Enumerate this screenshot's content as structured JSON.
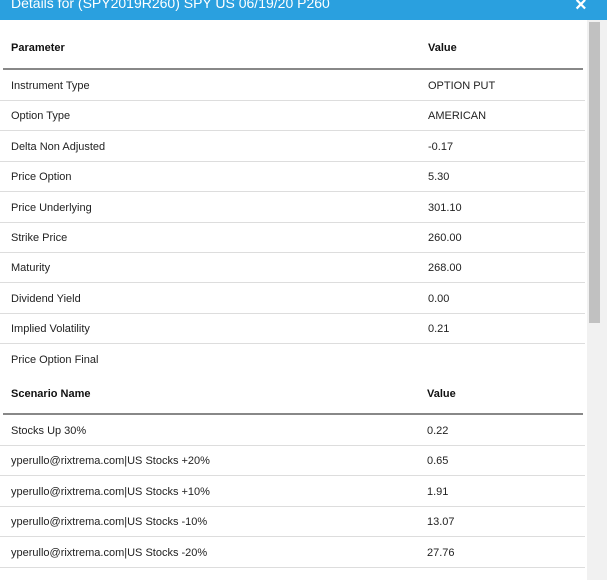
{
  "header": {
    "title": "Details for (SPY2019R260) SPY US 06/19/20 P260",
    "close": "×"
  },
  "parameters": {
    "columns": [
      "Parameter",
      "Value"
    ],
    "rows": [
      [
        "Instrument Type",
        "OPTION PUT"
      ],
      [
        "Option Type",
        "AMERICAN"
      ],
      [
        "Delta Non Adjusted",
        "-0.17"
      ],
      [
        "Price Option",
        "5.30"
      ],
      [
        "Price Underlying",
        "301.10"
      ],
      [
        "Strike Price",
        "260.00"
      ],
      [
        "Maturity",
        "268.00"
      ],
      [
        "Dividend Yield",
        "0.00"
      ],
      [
        "Implied Volatility",
        "0.21"
      ],
      [
        "Price Option Final",
        ""
      ]
    ]
  },
  "scenarios": {
    "columns": [
      "Scenario Name",
      "Value"
    ],
    "rows": [
      [
        "Stocks Up 30%",
        "0.22"
      ],
      [
        "yperullo@rixtrema.com|US Stocks +20%",
        "0.65"
      ],
      [
        "yperullo@rixtrema.com|US Stocks +10%",
        "1.91"
      ],
      [
        "yperullo@rixtrema.com|US Stocks -10%",
        "13.07"
      ],
      [
        "yperullo@rixtrema.com|US Stocks -20%",
        "27.76"
      ]
    ]
  }
}
